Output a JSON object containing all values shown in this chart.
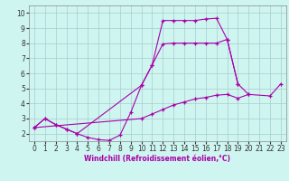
{
  "background_color": "#cef5f0",
  "grid_color": "#aacccc",
  "line_color": "#aa00aa",
  "marker": "+",
  "xlabel": "Windchill (Refroidissement éolien,°C)",
  "xlim": [
    -0.5,
    23.5
  ],
  "ylim": [
    1.5,
    10.5
  ],
  "xticks": [
    0,
    1,
    2,
    3,
    4,
    5,
    6,
    7,
    8,
    9,
    10,
    11,
    12,
    13,
    14,
    15,
    16,
    17,
    18,
    19,
    20,
    21,
    22,
    23
  ],
  "yticks": [
    2,
    3,
    4,
    5,
    6,
    7,
    8,
    9,
    10
  ],
  "series": [
    {
      "x": [
        0,
        1,
        2,
        3,
        4,
        5,
        6,
        7,
        8,
        9,
        10,
        11,
        12,
        13,
        14,
        15,
        16,
        17,
        18,
        19,
        20,
        22,
        23
      ],
      "y": [
        2.4,
        3.0,
        2.6,
        2.3,
        2.0,
        1.75,
        1.6,
        1.55,
        1.9,
        3.4,
        5.2,
        6.55,
        7.95,
        8.0,
        8.0,
        8.0,
        8.0,
        8.0,
        8.25,
        5.3,
        4.6,
        4.5,
        5.3
      ]
    },
    {
      "x": [
        0,
        1,
        2,
        3,
        4,
        10,
        11,
        12,
        13,
        14,
        15,
        16,
        17,
        18,
        19
      ],
      "y": [
        2.4,
        3.0,
        2.6,
        2.3,
        2.0,
        5.2,
        6.55,
        9.5,
        9.5,
        9.5,
        9.5,
        9.6,
        9.65,
        8.25,
        5.3
      ]
    },
    {
      "x": [
        0,
        10,
        11,
        12,
        13,
        14,
        15,
        16,
        17,
        18,
        19,
        20
      ],
      "y": [
        2.4,
        3.0,
        3.3,
        3.6,
        3.9,
        4.1,
        4.3,
        4.4,
        4.55,
        4.6,
        4.35,
        4.6
      ]
    }
  ]
}
